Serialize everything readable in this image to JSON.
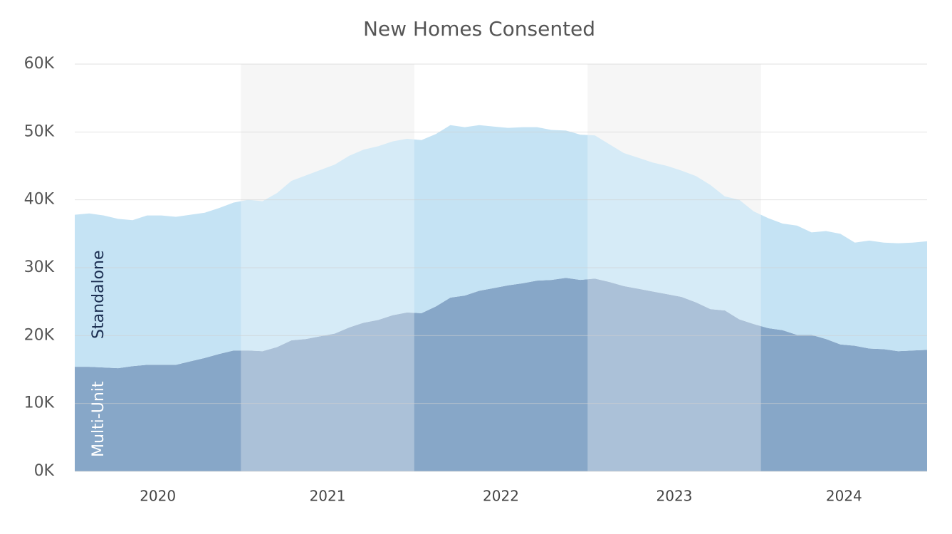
{
  "chart_data": {
    "type": "stacked_area",
    "title": "New Homes Consented",
    "categories": [
      null,
      null,
      null,
      null,
      null,
      null,
      "2020",
      null,
      null,
      null,
      null,
      null,
      null,
      null,
      null,
      null,
      null,
      null,
      "2021",
      null,
      null,
      null,
      null,
      null,
      null,
      null,
      null,
      null,
      null,
      null,
      "2022",
      null,
      null,
      null,
      null,
      null,
      null,
      null,
      null,
      null,
      null,
      null,
      "2023",
      null,
      null,
      null,
      null,
      null,
      null,
      null,
      null,
      null,
      null,
      null,
      "2024",
      null,
      null,
      null,
      null,
      null
    ],
    "series": [
      {
        "name": "Multi-Unit",
        "color": "#87a7c8",
        "values": [
          15400,
          15400,
          15300,
          15200,
          15500,
          15700,
          15700,
          15700,
          16200,
          16700,
          17300,
          17800,
          17800,
          17700,
          18300,
          19300,
          19500,
          19900,
          20300,
          21200,
          21900,
          22300,
          23000,
          23400,
          23300,
          24300,
          25600,
          25900,
          26600,
          27000,
          27400,
          27700,
          28100,
          28200,
          28500,
          28200,
          28400,
          27900,
          27300,
          26900,
          26500,
          26100,
          25700,
          24900,
          23900,
          23700,
          22400,
          21700,
          21100,
          20800,
          20100,
          20100,
          19500,
          18700,
          18500,
          18100,
          18000,
          17700,
          17800,
          17900
        ]
      },
      {
        "name": "Standalone",
        "color": "#c5e3f4",
        "values": [
          22400,
          22600,
          22400,
          22000,
          21500,
          22000,
          22000,
          21800,
          21600,
          21400,
          21500,
          21800,
          22200,
          22100,
          22700,
          23500,
          24100,
          24500,
          24900,
          25300,
          25500,
          25600,
          25600,
          25600,
          25500,
          25400,
          25400,
          24800,
          24400,
          23800,
          23200,
          23000,
          22600,
          22100,
          21700,
          21400,
          21100,
          20300,
          19600,
          19300,
          19000,
          18900,
          18600,
          18600,
          18300,
          16800,
          17600,
          16600,
          16200,
          15700,
          16100,
          15100,
          15900,
          16300,
          15200,
          15900,
          15700,
          15900,
          15900,
          16000
        ]
      }
    ],
    "ylim": [
      0,
      60000
    ],
    "yticks": [
      {
        "value": 0,
        "label": "0K"
      },
      {
        "value": 10000,
        "label": "10K"
      },
      {
        "value": 20000,
        "label": "20K"
      },
      {
        "value": 30000,
        "label": "30K"
      },
      {
        "value": 40000,
        "label": "40K"
      },
      {
        "value": 50000,
        "label": "50K"
      },
      {
        "value": 60000,
        "label": "60K"
      }
    ],
    "grid": true
  }
}
